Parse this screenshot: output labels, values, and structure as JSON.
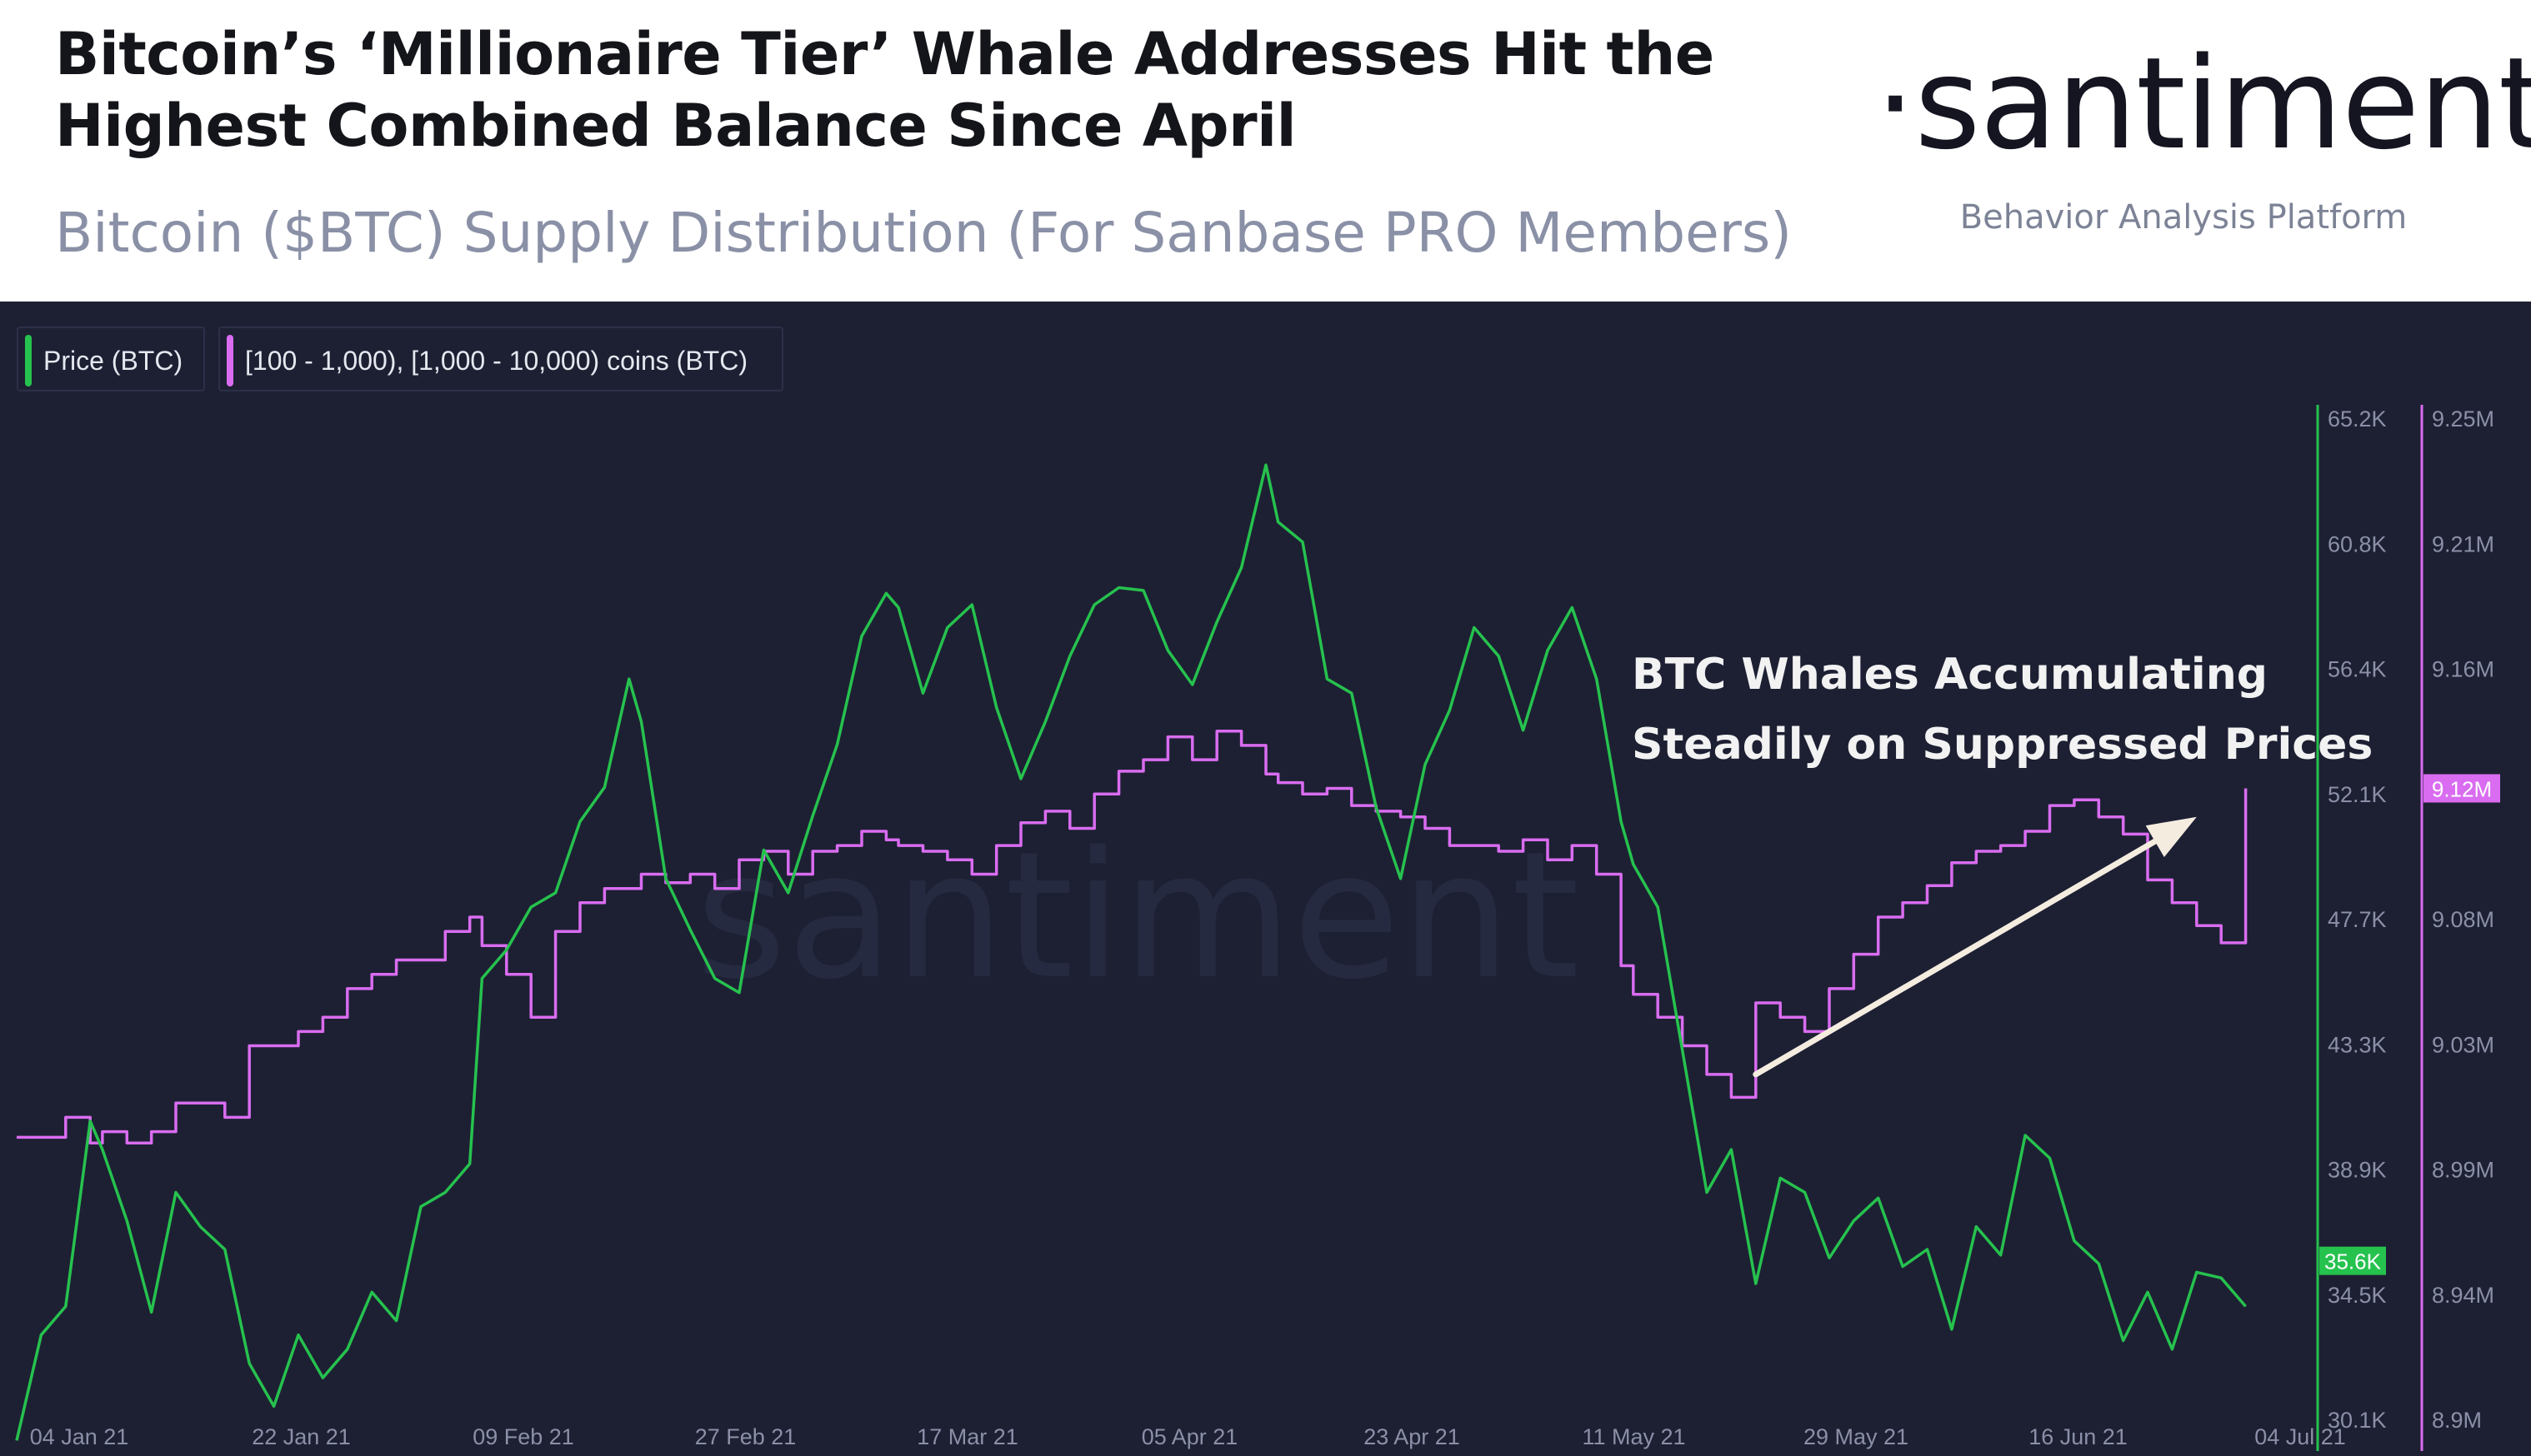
{
  "header": {
    "title_line1": "Bitcoin’s ‘Millionaire Tier’ Whale Addresses Hit the",
    "title_line2": "Highest Combined Balance Since April",
    "subtitle": "Bitcoin ($BTC) Supply Distribution (For Sanbase PRO Members)",
    "logo_text": "·santiment·",
    "logo_tagline": "Behavior Analysis Platform"
  },
  "colors": {
    "background": "#1d2033",
    "price": "#26c24e",
    "supply": "#d96cf0",
    "annotation_arrow": "#f5ece0",
    "axis_text": "#8b90a8",
    "watermark": "#262a40"
  },
  "chart_data": {
    "type": "line",
    "title": "",
    "watermark": "santiment",
    "x": {
      "range": [
        "2021-01-01",
        "2021-07-04"
      ],
      "tick_labels": [
        "04 Jan 21",
        "22 Jan 21",
        "09 Feb 21",
        "27 Feb 21",
        "17 Mar 21",
        "05 Apr 21",
        "23 Apr 21",
        "11 May 21",
        "29 May 21",
        "16 Jun 21",
        "04 Jul 21"
      ]
    },
    "y_left": {
      "label": "Price (BTC)",
      "range": [
        30100,
        65200
      ],
      "tick_labels": [
        "65.2K",
        "60.8K",
        "56.4K",
        "52.1K",
        "47.7K",
        "43.3K",
        "38.9K",
        "34.5K",
        "30.1K"
      ],
      "current_value_label": "35.6K",
      "current_value": 35600
    },
    "y_right": {
      "label": "[100 - 1,000), [1,000 - 10,000) coins (BTC)",
      "range": [
        8900000,
        9250000
      ],
      "tick_labels": [
        "9.25M",
        "9.21M",
        "9.16M",
        "9.12M",
        "9.08M",
        "9.03M",
        "8.99M",
        "8.94M",
        "8.9M"
      ],
      "current_value_label": "9.12M",
      "current_value": 9120000
    },
    "grid": false,
    "legend_position": "top-left",
    "series": [
      {
        "name": "Price (BTC)",
        "axis": "left",
        "x": [
          "2021-01-01",
          "2021-01-03",
          "2021-01-05",
          "2021-01-07",
          "2021-01-08",
          "2021-01-10",
          "2021-01-12",
          "2021-01-14",
          "2021-01-16",
          "2021-01-18",
          "2021-01-20",
          "2021-01-22",
          "2021-01-24",
          "2021-01-26",
          "2021-01-28",
          "2021-01-30",
          "2021-02-01",
          "2021-02-03",
          "2021-02-05",
          "2021-02-07",
          "2021-02-08",
          "2021-02-10",
          "2021-02-12",
          "2021-02-14",
          "2021-02-16",
          "2021-02-18",
          "2021-02-20",
          "2021-02-21",
          "2021-02-23",
          "2021-02-25",
          "2021-02-27",
          "2021-03-01",
          "2021-03-03",
          "2021-03-05",
          "2021-03-07",
          "2021-03-09",
          "2021-03-11",
          "2021-03-13",
          "2021-03-14",
          "2021-03-16",
          "2021-03-18",
          "2021-03-20",
          "2021-03-22",
          "2021-03-24",
          "2021-03-26",
          "2021-03-28",
          "2021-03-30",
          "2021-04-01",
          "2021-04-03",
          "2021-04-05",
          "2021-04-07",
          "2021-04-09",
          "2021-04-11",
          "2021-04-13",
          "2021-04-14",
          "2021-04-16",
          "2021-04-18",
          "2021-04-20",
          "2021-04-22",
          "2021-04-24",
          "2021-04-26",
          "2021-04-28",
          "2021-04-30",
          "2021-05-02",
          "2021-05-04",
          "2021-05-06",
          "2021-05-08",
          "2021-05-10",
          "2021-05-12",
          "2021-05-13",
          "2021-05-15",
          "2021-05-17",
          "2021-05-19",
          "2021-05-21",
          "2021-05-23",
          "2021-05-25",
          "2021-05-27",
          "2021-05-29",
          "2021-05-31",
          "2021-06-02",
          "2021-06-04",
          "2021-06-06",
          "2021-06-08",
          "2021-06-10",
          "2021-06-12",
          "2021-06-14",
          "2021-06-16",
          "2021-06-18",
          "2021-06-20",
          "2021-06-22",
          "2021-06-24",
          "2021-06-26",
          "2021-06-28",
          "2021-06-30",
          "2021-07-02"
        ],
        "values": [
          29300,
          33000,
          34000,
          40500,
          39500,
          37000,
          33800,
          38000,
          36800,
          36000,
          32000,
          30500,
          33000,
          31500,
          32500,
          34500,
          33500,
          37500,
          38000,
          39000,
          45500,
          46500,
          48000,
          48500,
          51000,
          52200,
          56000,
          54500,
          49000,
          47200,
          45500,
          45000,
          50000,
          48500,
          51200,
          53700,
          57500,
          59000,
          58500,
          55500,
          57800,
          58600,
          55000,
          52500,
          54500,
          56800,
          58600,
          59200,
          59100,
          57000,
          55800,
          58000,
          59900,
          63500,
          61500,
          60800,
          56000,
          55500,
          51500,
          49000,
          53000,
          54900,
          57800,
          56800,
          54200,
          57000,
          58500,
          56000,
          51000,
          49500,
          48000,
          43000,
          38000,
          39500,
          34800,
          38500,
          38000,
          35700,
          37000,
          37800,
          35400,
          36000,
          33200,
          36800,
          35800,
          40000,
          39200,
          36300,
          35500,
          32800,
          34500,
          32500,
          35200,
          35000,
          34000
        ]
      },
      {
        "name": "[100 - 1,000), [1,000 - 10,000) coins (BTC)",
        "axis": "right",
        "x": [
          "2021-01-01",
          "2021-01-03",
          "2021-01-05",
          "2021-01-07",
          "2021-01-08",
          "2021-01-10",
          "2021-01-12",
          "2021-01-14",
          "2021-01-16",
          "2021-01-18",
          "2021-01-20",
          "2021-01-22",
          "2021-01-24",
          "2021-01-26",
          "2021-01-28",
          "2021-01-30",
          "2021-02-01",
          "2021-02-03",
          "2021-02-05",
          "2021-02-07",
          "2021-02-08",
          "2021-02-10",
          "2021-02-12",
          "2021-02-14",
          "2021-02-16",
          "2021-02-18",
          "2021-02-20",
          "2021-02-21",
          "2021-02-23",
          "2021-02-25",
          "2021-02-27",
          "2021-03-01",
          "2021-03-03",
          "2021-03-05",
          "2021-03-07",
          "2021-03-09",
          "2021-03-11",
          "2021-03-13",
          "2021-03-14",
          "2021-03-16",
          "2021-03-18",
          "2021-03-20",
          "2021-03-22",
          "2021-03-24",
          "2021-03-26",
          "2021-03-28",
          "2021-03-30",
          "2021-04-01",
          "2021-04-03",
          "2021-04-05",
          "2021-04-07",
          "2021-04-09",
          "2021-04-11",
          "2021-04-13",
          "2021-04-14",
          "2021-04-16",
          "2021-04-18",
          "2021-04-20",
          "2021-04-22",
          "2021-04-24",
          "2021-04-26",
          "2021-04-28",
          "2021-04-30",
          "2021-05-02",
          "2021-05-04",
          "2021-05-06",
          "2021-05-08",
          "2021-05-10",
          "2021-05-12",
          "2021-05-13",
          "2021-05-15",
          "2021-05-17",
          "2021-05-19",
          "2021-05-21",
          "2021-05-23",
          "2021-05-25",
          "2021-05-27",
          "2021-05-29",
          "2021-05-31",
          "2021-06-02",
          "2021-06-04",
          "2021-06-06",
          "2021-06-08",
          "2021-06-10",
          "2021-06-12",
          "2021-06-14",
          "2021-06-16",
          "2021-06-18",
          "2021-06-20",
          "2021-06-22",
          "2021-06-24",
          "2021-06-26",
          "2021-06-28",
          "2021-06-30",
          "2021-07-02"
        ],
        "values": [
          8998000,
          8998000,
          9005000,
          8996000,
          9000000,
          8996000,
          9000000,
          9010000,
          9010000,
          9005000,
          9030000,
          9030000,
          9035000,
          9040000,
          9050000,
          9055000,
          9060000,
          9060000,
          9070000,
          9075000,
          9065000,
          9055000,
          9040000,
          9070000,
          9080000,
          9085000,
          9085000,
          9090000,
          9087000,
          9090000,
          9085000,
          9095000,
          9098000,
          9090000,
          9098000,
          9100000,
          9105000,
          9102000,
          9100000,
          9098000,
          9095000,
          9090000,
          9100000,
          9108000,
          9112000,
          9106000,
          9118000,
          9126000,
          9130000,
          9138000,
          9130000,
          9140000,
          9135000,
          9125000,
          9122000,
          9118000,
          9120000,
          9114000,
          9112000,
          9110000,
          9106000,
          9100000,
          9100000,
          9098000,
          9102000,
          9095000,
          9100000,
          9090000,
          9058000,
          9048000,
          9040000,
          9030000,
          9020000,
          9012000,
          9045000,
          9040000,
          9035000,
          9050000,
          9062000,
          9075000,
          9080000,
          9086000,
          9094000,
          9098000,
          9100000,
          9105000,
          9114000,
          9116000,
          9110000,
          9104000,
          9088000,
          9080000,
          9072000,
          9066000,
          9120000
        ]
      }
    ],
    "annotations": [
      {
        "text_line1": "BTC Whales Accumulating",
        "text_line2": "Steadily on Suppressed Prices",
        "arrow_from": [
          "2021-05-23",
          9020000
        ],
        "arrow_to": [
          "2021-06-28",
          9110000
        ]
      }
    ]
  }
}
